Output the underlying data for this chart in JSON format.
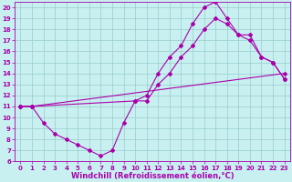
{
  "xlabel": "Windchill (Refroidissement éolien,°C)",
  "bg_color": "#c8f0f0",
  "line_color": "#aa00aa",
  "xlim": [
    -0.5,
    23.5
  ],
  "ylim": [
    6,
    20.5
  ],
  "xticks": [
    0,
    1,
    2,
    3,
    4,
    5,
    6,
    7,
    8,
    9,
    10,
    11,
    12,
    13,
    14,
    15,
    16,
    17,
    18,
    19,
    20,
    21,
    22,
    23
  ],
  "yticks": [
    6,
    7,
    8,
    9,
    10,
    11,
    12,
    13,
    14,
    15,
    16,
    17,
    18,
    19,
    20
  ],
  "line1_x": [
    0,
    1,
    23
  ],
  "line1_y": [
    11,
    11,
    14
  ],
  "line2_x": [
    0,
    1,
    2,
    3,
    4,
    5,
    6,
    7,
    8,
    9,
    10,
    11,
    12,
    13,
    14,
    15,
    16,
    17,
    18,
    19,
    20,
    21,
    22,
    23
  ],
  "line2_y": [
    11,
    11,
    9.5,
    8.5,
    8.0,
    7.5,
    7.0,
    6.5,
    7.0,
    9.5,
    11.5,
    12.0,
    14.0,
    15.5,
    16.5,
    18.5,
    20.0,
    20.5,
    19.0,
    17.5,
    17.0,
    15.5,
    15.0,
    13.5
  ],
  "line3_x": [
    0,
    1,
    10,
    11,
    12,
    13,
    14,
    15,
    16,
    17,
    18,
    19,
    20,
    21,
    22,
    23
  ],
  "line3_y": [
    11,
    11,
    11.5,
    11.5,
    13.0,
    14.0,
    15.5,
    16.5,
    18.0,
    19.0,
    18.5,
    17.5,
    17.5,
    15.5,
    15.0,
    13.5
  ],
  "marker": "D",
  "marker_size": 2,
  "line_width": 0.8,
  "xlabel_fontsize": 6,
  "tick_fontsize": 5,
  "grid_color": "#99cccc",
  "grid_lw": 0.5
}
